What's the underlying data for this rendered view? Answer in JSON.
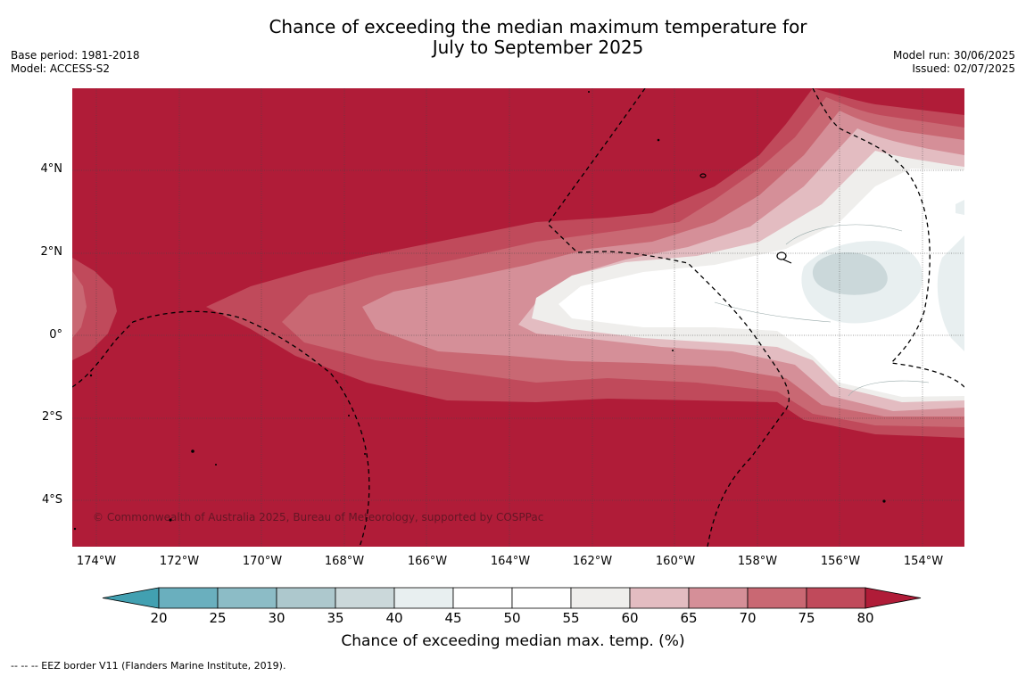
{
  "title_line1": "Chance of exceeding the median maximum temperature for",
  "title_line2": "July to September 2025",
  "meta_left": {
    "base_period": "Base period: 1981-2018",
    "model": "Model: ACCESS-S2"
  },
  "meta_right": {
    "model_run": "Model run: 30/06/2025",
    "issued": "Issued: 02/07/2025"
  },
  "copyright": "© Commonwealth of Australia 2025, Bureau of Meteorology, supported by COSPPac",
  "lat_labels": [
    "4°N",
    "2°N",
    "0°",
    "2°S",
    "4°S"
  ],
  "lon_labels": [
    "174°W",
    "172°W",
    "170°W",
    "168°W",
    "166°W",
    "164°W",
    "162°W",
    "160°W",
    "158°W",
    "156°W",
    "154°W"
  ],
  "colorbar": {
    "title": "Chance of exceeding median max. temp. (%)",
    "ticks": [
      "20",
      "25",
      "30",
      "35",
      "40",
      "45",
      "50",
      "55",
      "60",
      "65",
      "70",
      "75",
      "80"
    ],
    "under_color": "#42a0b1",
    "over_color": "#b01c38",
    "colors": [
      "#6aafbe",
      "#8cbcc6",
      "#adc8cd",
      "#cbd8da",
      "#e8eff0",
      "#ffffff",
      "#ffffff",
      "#efeeec",
      "#e3bcc1",
      "#d58f98",
      "#c96873",
      "#c04a5b"
    ]
  },
  "eez_note": "--  --  -- EEZ border V11 (Flanders Marine Institute, 2019).",
  "colors": {
    "deep_red": "#b01c38",
    "ocean_labels": "#000000"
  }
}
